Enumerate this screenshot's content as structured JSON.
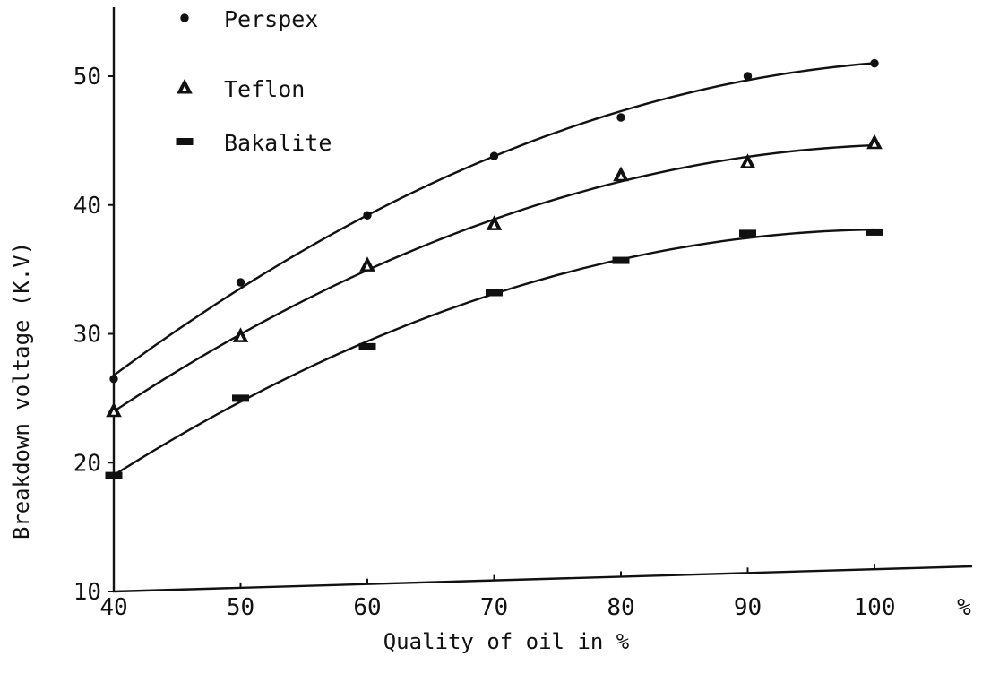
{
  "chart_data": {
    "type": "scatter",
    "xlabel": "Quality of oil in %",
    "ylabel": "Breakdown voltage (K.V)",
    "x_unit_label": "%",
    "x_ticks": [
      40,
      50,
      60,
      70,
      80,
      90,
      100
    ],
    "y_ticks": [
      10,
      20,
      30,
      40,
      50
    ],
    "xlim": [
      40,
      100
    ],
    "ylim": [
      10,
      55
    ],
    "grid": false,
    "legend_position": "top-left",
    "fitted_curves": true,
    "series": [
      {
        "name": "Perspex",
        "marker": "dot",
        "x": [
          40,
          50,
          60,
          70,
          80,
          90,
          100
        ],
        "y": [
          26.5,
          34,
          39.2,
          43.8,
          46.8,
          50,
          51
        ]
      },
      {
        "name": "Teflon",
        "marker": "triangle",
        "x": [
          40,
          50,
          60,
          70,
          80,
          90,
          100
        ],
        "y": [
          24,
          29.8,
          35.3,
          38.5,
          42.3,
          43.3,
          44.8
        ]
      },
      {
        "name": "Bakalite",
        "marker": "dash",
        "x": [
          40,
          50,
          60,
          70,
          80,
          90,
          100
        ],
        "y": [
          19,
          25,
          29,
          33.2,
          35.7,
          37.8,
          37.9
        ]
      }
    ]
  }
}
